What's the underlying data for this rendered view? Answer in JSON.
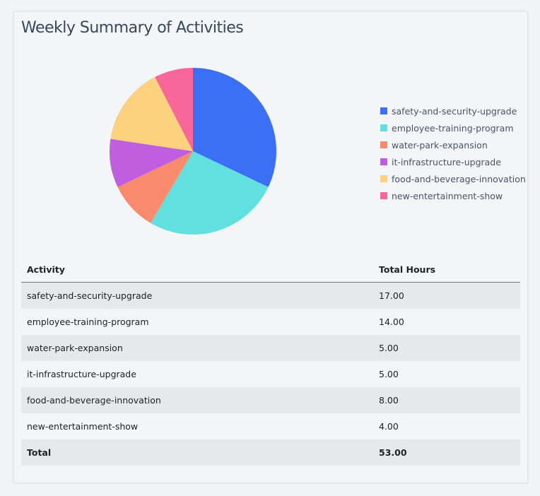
{
  "title": "Weekly Summary of Activities",
  "chart_data": {
    "type": "pie",
    "categories": [
      "safety-and-security-upgrade",
      "employee-training-program",
      "water-park-expansion",
      "it-infrastructure-upgrade",
      "food-and-beverage-innovation",
      "new-entertainment-show"
    ],
    "values": [
      17,
      14,
      5,
      5,
      8,
      4
    ],
    "colors": [
      "#3b6ff5",
      "#62e0e0",
      "#f98b6c",
      "#c05ee0",
      "#fdd27e",
      "#f9679a"
    ],
    "legend_position": "right"
  },
  "table": {
    "headers": [
      "Activity",
      "Total Hours"
    ],
    "rows": [
      [
        "safety-and-security-upgrade",
        "17.00"
      ],
      [
        "employee-training-program",
        "14.00"
      ],
      [
        "water-park-expansion",
        "5.00"
      ],
      [
        "it-infrastructure-upgrade",
        "5.00"
      ],
      [
        "food-and-beverage-innovation",
        "8.00"
      ],
      [
        "new-entertainment-show",
        "4.00"
      ]
    ],
    "total": [
      "Total",
      "53.00"
    ]
  }
}
